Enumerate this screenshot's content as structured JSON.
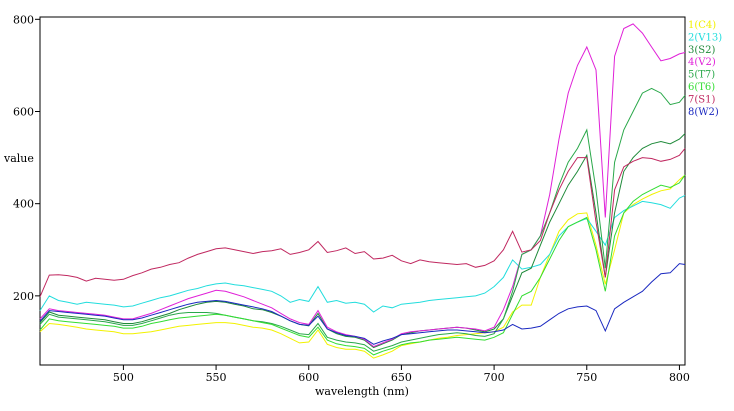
{
  "chart_data": {
    "type": "line",
    "xlabel": "wavelength (nm)",
    "ylabel": "value",
    "xlim": [
      455,
      803
    ],
    "ylim": [
      50,
      805
    ],
    "x_ticks": [
      500,
      550,
      600,
      650,
      700,
      750,
      800
    ],
    "y_ticks": [
      200,
      400,
      600,
      800
    ],
    "grid": false,
    "legend_position": "right",
    "x": [
      455,
      460,
      465,
      470,
      475,
      480,
      485,
      490,
      495,
      500,
      505,
      510,
      515,
      520,
      525,
      530,
      535,
      540,
      545,
      550,
      555,
      560,
      565,
      570,
      575,
      580,
      585,
      590,
      595,
      600,
      605,
      610,
      615,
      620,
      625,
      630,
      635,
      640,
      645,
      650,
      655,
      660,
      665,
      670,
      675,
      680,
      685,
      690,
      695,
      700,
      705,
      710,
      715,
      720,
      725,
      730,
      735,
      740,
      745,
      750,
      755,
      760,
      765,
      770,
      775,
      780,
      785,
      790,
      795,
      800,
      803
    ],
    "series": [
      {
        "name": "1(C4)",
        "color": "#f2f200",
        "values": [
          122,
          140,
          138,
          135,
          132,
          128,
          126,
          124,
          122,
          118,
          118,
          120,
          122,
          126,
          130,
          134,
          136,
          138,
          140,
          142,
          142,
          140,
          136,
          132,
          130,
          126,
          118,
          108,
          98,
          100,
          126,
          95,
          88,
          84,
          84,
          80,
          65,
          72,
          80,
          92,
          96,
          100,
          104,
          108,
          110,
          114,
          116,
          118,
          120,
          122,
          132,
          165,
          180,
          180,
          240,
          290,
          340,
          365,
          378,
          380,
          310,
          225,
          300,
          380,
          398,
          410,
          420,
          428,
          432,
          452,
          462
        ]
      },
      {
        "name": "2(V13)",
        "color": "#22dddd",
        "values": [
          168,
          200,
          190,
          186,
          182,
          186,
          184,
          182,
          180,
          176,
          178,
          184,
          190,
          196,
          200,
          206,
          212,
          216,
          222,
          226,
          228,
          224,
          222,
          218,
          214,
          210,
          200,
          186,
          192,
          188,
          220,
          186,
          190,
          184,
          186,
          182,
          165,
          178,
          174,
          182,
          184,
          186,
          190,
          192,
          194,
          196,
          198,
          200,
          206,
          220,
          240,
          278,
          258,
          262,
          268,
          290,
          330,
          350,
          360,
          368,
          340,
          310,
          370,
          385,
          395,
          405,
          402,
          398,
          390,
          412,
          418
        ]
      },
      {
        "name": "3(S2)",
        "color": "#1f8a3a",
        "values": [
          142,
          165,
          158,
          156,
          154,
          152,
          150,
          148,
          144,
          140,
          140,
          144,
          150,
          156,
          162,
          170,
          176,
          182,
          186,
          188,
          186,
          182,
          178,
          172,
          170,
          164,
          156,
          146,
          138,
          135,
          162,
          128,
          118,
          112,
          110,
          104,
          88,
          96,
          104,
          116,
          120,
          124,
          126,
          128,
          130,
          132,
          130,
          126,
          122,
          128,
          150,
          200,
          250,
          260,
          310,
          360,
          400,
          440,
          470,
          505,
          380,
          240,
          380,
          470,
          500,
          520,
          530,
          535,
          530,
          540,
          552
        ]
      },
      {
        "name": "4(V2)",
        "color": "#e020d8",
        "values": [
          150,
          172,
          168,
          166,
          164,
          162,
          160,
          158,
          154,
          150,
          150,
          156,
          162,
          170,
          178,
          186,
          194,
          200,
          206,
          212,
          210,
          204,
          198,
          190,
          182,
          174,
          162,
          150,
          142,
          138,
          168,
          132,
          122,
          116,
          112,
          106,
          90,
          98,
          106,
          118,
          122,
          124,
          126,
          128,
          130,
          132,
          130,
          128,
          124,
          132,
          170,
          220,
          290,
          300,
          330,
          420,
          540,
          640,
          700,
          740,
          690,
          370,
          720,
          780,
          790,
          770,
          740,
          710,
          715,
          725,
          728
        ]
      },
      {
        "name": "5(T7)",
        "color": "#2aa84a",
        "values": [
          138,
          160,
          154,
          152,
          150,
          148,
          146,
          144,
          140,
          136,
          136,
          140,
          146,
          152,
          158,
          162,
          164,
          164,
          164,
          162,
          158,
          154,
          150,
          146,
          144,
          140,
          134,
          126,
          118,
          116,
          140,
          110,
          104,
          100,
          98,
          94,
          80,
          86,
          92,
          100,
          104,
          108,
          112,
          116,
          118,
          120,
          118,
          114,
          112,
          118,
          150,
          210,
          290,
          300,
          330,
          380,
          440,
          490,
          520,
          560,
          430,
          260,
          490,
          560,
          600,
          640,
          650,
          640,
          615,
          620,
          635
        ]
      },
      {
        "name": "6(T6)",
        "color": "#33dd33",
        "values": [
          126,
          150,
          146,
          144,
          142,
          140,
          138,
          136,
          134,
          130,
          130,
          134,
          140,
          144,
          148,
          152,
          154,
          156,
          158,
          160,
          158,
          154,
          150,
          146,
          142,
          138,
          130,
          122,
          114,
          110,
          132,
          104,
          96,
          92,
          90,
          86,
          72,
          80,
          86,
          94,
          98,
          100,
          104,
          106,
          108,
          110,
          108,
          106,
          104,
          110,
          120,
          160,
          200,
          210,
          240,
          280,
          320,
          350,
          360,
          370,
          300,
          210,
          330,
          380,
          405,
          420,
          430,
          440,
          435,
          445,
          462
        ]
      },
      {
        "name": "7(S1)",
        "color": "#c02860",
        "values": [
          198,
          245,
          246,
          244,
          240,
          232,
          238,
          236,
          234,
          236,
          244,
          250,
          258,
          262,
          268,
          272,
          282,
          290,
          296,
          302,
          304,
          300,
          296,
          292,
          296,
          298,
          302,
          290,
          294,
          300,
          318,
          294,
          298,
          304,
          292,
          296,
          280,
          282,
          288,
          276,
          270,
          278,
          274,
          272,
          270,
          268,
          270,
          262,
          266,
          276,
          300,
          340,
          295,
          300,
          320,
          380,
          430,
          470,
          500,
          500,
          360,
          240,
          430,
          480,
          492,
          500,
          498,
          492,
          496,
          505,
          520
        ]
      },
      {
        "name": "8(W2)",
        "color": "#1a28c0",
        "values": [
          145,
          168,
          166,
          164,
          162,
          160,
          158,
          156,
          152,
          148,
          148,
          152,
          158,
          164,
          170,
          176,
          182,
          186,
          188,
          190,
          188,
          184,
          180,
          176,
          172,
          166,
          156,
          146,
          138,
          136,
          156,
          128,
          120,
          114,
          112,
          108,
          95,
          102,
          108,
          116,
          118,
          120,
          122,
          124,
          126,
          126,
          124,
          122,
          120,
          122,
          126,
          138,
          128,
          130,
          134,
          148,
          162,
          172,
          176,
          178,
          168,
          124,
          172,
          186,
          198,
          210,
          230,
          248,
          250,
          270,
          268
        ]
      }
    ]
  }
}
